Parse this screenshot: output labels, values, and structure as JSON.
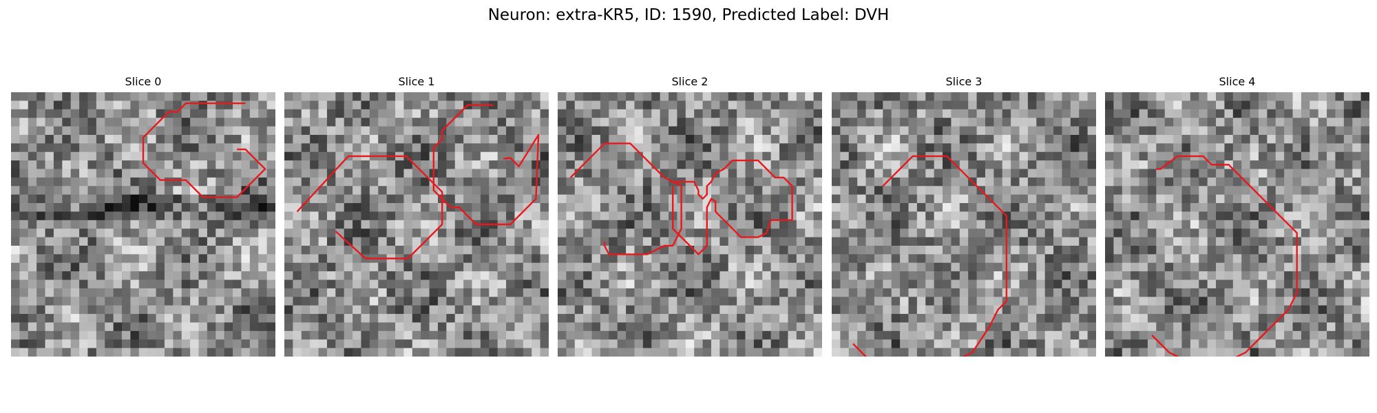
{
  "figure": {
    "title": "Neuron: extra-KR5, ID: 1590, Predicted Label: DVH"
  },
  "slices": [
    {
      "label": "Slice 0",
      "seed": 11,
      "dark_band": true,
      "contours": [
        [
          [
            20.5,
            0.7
          ],
          [
            21.5,
            0.7
          ],
          [
            23.5,
            2.7
          ],
          [
            23.8,
            3
          ],
          [
            22.5,
            4.3
          ],
          [
            20.5,
            6.3
          ],
          [
            16.5,
            6.3
          ],
          [
            14.5,
            4.3
          ],
          [
            11.5,
            4.3
          ],
          [
            10.5,
            3.3
          ],
          [
            9.5,
            2.3
          ],
          [
            9.5,
            -0.7
          ],
          [
            10.5,
            -1.7
          ],
          [
            11.5,
            -2.7
          ],
          [
            12.5,
            -3.7
          ],
          [
            13.5,
            -3.7
          ],
          [
            14.5,
            -4.7
          ],
          [
            21.5,
            -4.7
          ]
        ]
      ]
    },
    {
      "label": "Slice 1",
      "seed": 23,
      "dark_band": false,
      "contours": [
        [
          [
            -4.5,
            8
          ],
          [
            1.5,
            1.5
          ],
          [
            8.3,
            1.5
          ],
          [
            12.5,
            5.7
          ],
          [
            12.5,
            9.5
          ],
          [
            8.5,
            13.5
          ],
          [
            3.5,
            13.5
          ],
          [
            0,
            10.3
          ]
        ],
        [
          [
            19.7,
            1.8
          ],
          [
            20.5,
            1.7
          ],
          [
            21.5,
            2.7
          ],
          [
            23.8,
            -1
          ],
          [
            23.5,
            6.5
          ],
          [
            20.5,
            9.5
          ],
          [
            16.5,
            9.5
          ],
          [
            14.5,
            7.5
          ],
          [
            13.5,
            7.5
          ],
          [
            11.5,
            5.5
          ],
          [
            11.5,
            1.5
          ],
          [
            11.5,
            0.5
          ],
          [
            12.5,
            -0.5
          ],
          [
            12.5,
            -1.5
          ],
          [
            13.5,
            -2.5
          ],
          [
            15.5,
            -4.5
          ],
          [
            18.5,
            -4.5
          ]
        ]
      ]
    },
    {
      "label": "Slice 2",
      "seed": 37,
      "dark_band": false,
      "contours": [
        [
          [
            -4.5,
            4
          ],
          [
            -0.5,
            0
          ],
          [
            2.5,
            0
          ],
          [
            5.5,
            3
          ],
          [
            6.5,
            4
          ],
          [
            7.5,
            4.5
          ],
          [
            8.5,
            5
          ],
          [
            8.5,
            10
          ],
          [
            7.5,
            12
          ],
          [
            6.5,
            12
          ],
          [
            4.5,
            13
          ],
          [
            0,
            13
          ],
          [
            -0.5,
            12
          ],
          [
            -0.5,
            11.5
          ]
        ],
        [
          [
            7.3,
            4.5
          ],
          [
            10,
            4.5
          ],
          [
            10.5,
            5.5
          ],
          [
            10.5,
            6
          ],
          [
            11,
            6.5
          ],
          [
            11.5,
            6
          ],
          [
            11.5,
            5
          ],
          [
            12,
            4.5
          ],
          [
            12.5,
            3.5
          ],
          [
            13.5,
            3
          ],
          [
            14.5,
            2
          ],
          [
            17.5,
            2
          ],
          [
            19.5,
            4
          ],
          [
            20.5,
            4
          ],
          [
            21.5,
            5
          ],
          [
            21.5,
            9
          ],
          [
            20.5,
            9
          ],
          [
            19.5,
            9
          ],
          [
            19,
            9
          ],
          [
            18.5,
            10.5
          ],
          [
            17.5,
            11
          ],
          [
            15.5,
            11
          ],
          [
            14.5,
            10
          ],
          [
            13.5,
            9
          ],
          [
            12.5,
            8
          ],
          [
            12.5,
            6.8
          ],
          [
            12,
            6.5
          ],
          [
            11.5,
            7.5
          ],
          [
            11.5,
            12
          ],
          [
            10.5,
            13
          ],
          [
            8.5,
            11
          ],
          [
            7.5,
            10
          ],
          [
            7.5,
            5
          ]
        ]
      ]
    },
    {
      "label": "Slice 3",
      "seed": 53,
      "dark_band": false,
      "contours": [
        [
          [
            0,
            5
          ],
          [
            3.5,
            1.5
          ],
          [
            7.5,
            1.5
          ],
          [
            9.5,
            3.5
          ],
          [
            10.5,
            4.5
          ],
          [
            12.5,
            6.5
          ],
          [
            14.5,
            8.5
          ],
          [
            14.5,
            9.5
          ],
          [
            14.5,
            18.5
          ],
          [
            13.5,
            19.5
          ],
          [
            12.5,
            21.5
          ],
          [
            10.5,
            24.5
          ],
          [
            8.5,
            25.5
          ],
          [
            5.5,
            25.5
          ],
          [
            3.5,
            26.5
          ],
          [
            0,
            26.5
          ],
          [
            -1.5,
            25.5
          ],
          [
            -3.5,
            23.5
          ]
        ]
      ]
    },
    {
      "label": "Slice 4",
      "seed": 71,
      "dark_band": false,
      "contours": [
        [
          [
            0,
            3
          ],
          [
            0.5,
            3
          ],
          [
            2.5,
            1.5
          ],
          [
            5.5,
            1.5
          ],
          [
            6.5,
            2.5
          ],
          [
            8.5,
            2.5
          ],
          [
            10.5,
            4.5
          ],
          [
            14.5,
            8.5
          ],
          [
            15.5,
            9.5
          ],
          [
            16.5,
            10.5
          ],
          [
            16.5,
            17.5
          ],
          [
            15.5,
            19.5
          ],
          [
            14.5,
            20.5
          ],
          [
            13.5,
            21.5
          ],
          [
            11.5,
            23.5
          ],
          [
            10.5,
            24.5
          ],
          [
            8.5,
            25.5
          ],
          [
            3.5,
            25.5
          ],
          [
            1.5,
            24.5
          ],
          [
            -0.5,
            22.5
          ]
        ]
      ]
    }
  ]
}
